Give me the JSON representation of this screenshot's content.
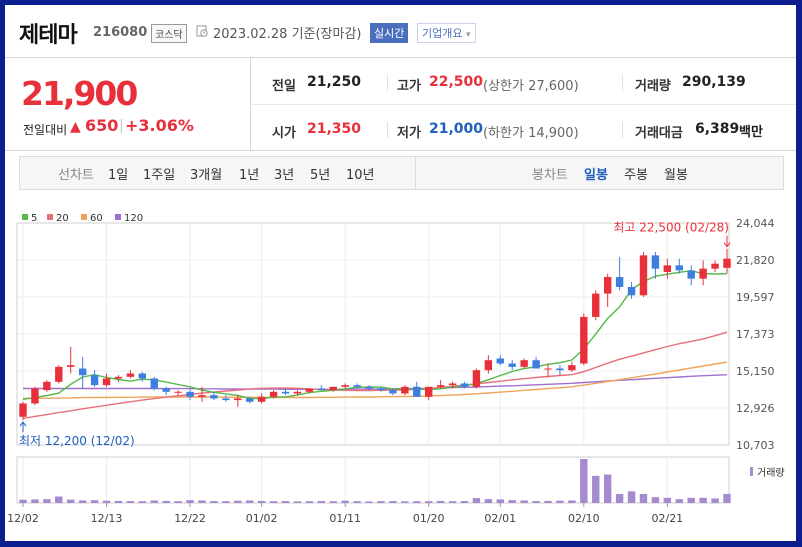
{
  "header": {
    "name": "제테마",
    "code": "216080",
    "market": "코스닥",
    "date_text": "2023.02.28 기준(장마감)",
    "realtime_button": "실시간",
    "overview_button": "기업개요",
    "overview_caret": "▾"
  },
  "price": {
    "current": "21,900",
    "compare_label": "전일대비",
    "change_arrow": "▲",
    "change": "650",
    "change_sep": "|",
    "change_pct": "+3.06%"
  },
  "stats": {
    "prev_label": "전일",
    "prev": "21,250",
    "open_label": "시가",
    "open": "21,350",
    "high_label": "고가",
    "high": "22,500",
    "upper_limit": "(상한가 27,600)",
    "low_label": "저가",
    "low": "21,000",
    "lower_limit": "(하한가 14,900)",
    "volume_label": "거래량",
    "volume": "290,139",
    "amount_label": "거래대금",
    "amount": "6,389",
    "amount_unit": "백만"
  },
  "periods": {
    "line_label": "선차트",
    "line_items": [
      "1일",
      "1주일",
      "3개월",
      "1년",
      "3년",
      "5년",
      "10년"
    ],
    "candle_label": "봉차트",
    "candle_items": [
      "일봉",
      "주봉",
      "월봉"
    ],
    "selected_candle": "일봉"
  },
  "colors": {
    "up": "#e8303a",
    "down": "#3c7fe0",
    "ma5": "#55b848",
    "ma20": "#e8707a",
    "ma60": "#f0a35a",
    "ma120": "#a070d0",
    "volume": "#a58ad0",
    "accent": "#4a6fbf"
  },
  "chart_data": {
    "type": "candlestick",
    "legend": [
      {
        "name": "5",
        "color": "#55b848"
      },
      {
        "name": "20",
        "color": "#e8707a"
      },
      {
        "name": "60",
        "color": "#f0a35a"
      },
      {
        "name": "120",
        "color": "#a070d0"
      }
    ],
    "y_ticks": [
      "24,044",
      "21,820",
      "19,597",
      "17,373",
      "15,150",
      "12,926",
      "10,703"
    ],
    "ylim": [
      10703,
      24044
    ],
    "x_tick_labels": [
      "12/02",
      "12/13",
      "12/22",
      "01/02",
      "01/11",
      "01/20",
      "02/01",
      "02/10",
      "02/21"
    ],
    "x_tick_index": [
      0,
      7,
      14,
      20,
      27,
      34,
      40,
      47,
      54
    ],
    "max_annotation": "최고 22,500 (02/28)",
    "min_annotation": "최저 12,200 (12/02)",
    "volume_label": "거래량",
    "dates": [
      "12/02",
      "12/05",
      "12/06",
      "12/07",
      "12/08",
      "12/09",
      "12/12",
      "12/13",
      "12/14",
      "12/15",
      "12/16",
      "12/19",
      "12/20",
      "12/21",
      "12/22",
      "12/23",
      "12/26",
      "12/27",
      "12/28",
      "12/29",
      "01/02",
      "01/03",
      "01/04",
      "01/05",
      "01/06",
      "01/09",
      "01/10",
      "01/11",
      "01/12",
      "01/13",
      "01/16",
      "01/17",
      "01/18",
      "01/19",
      "01/20",
      "01/25",
      "01/26",
      "01/27",
      "01/30",
      "01/31",
      "02/01",
      "02/02",
      "02/03",
      "02/06",
      "02/07",
      "02/08",
      "02/09",
      "02/10",
      "02/13",
      "02/14",
      "02/15",
      "02/16",
      "02/17",
      "02/20",
      "02/21",
      "02/22",
      "02/23",
      "02/24",
      "02/27",
      "02/28"
    ],
    "ohlc": [
      [
        12400,
        13300,
        12200,
        13200
      ],
      [
        13200,
        14200,
        13100,
        14100
      ],
      [
        14000,
        14600,
        13900,
        14500
      ],
      [
        14500,
        15500,
        14400,
        15400
      ],
      [
        15400,
        16600,
        15000,
        15500
      ],
      [
        15300,
        16000,
        14100,
        14900
      ],
      [
        14900,
        15200,
        14200,
        14300
      ],
      [
        14300,
        15000,
        14200,
        14700
      ],
      [
        14700,
        14900,
        14500,
        14800
      ],
      [
        14800,
        15200,
        14700,
        15000
      ],
      [
        15000,
        15100,
        14500,
        14700
      ],
      [
        14700,
        14800,
        14000,
        14100
      ],
      [
        14100,
        14200,
        13700,
        13900
      ],
      [
        13900,
        14000,
        13700,
        13900
      ],
      [
        13900,
        14100,
        13400,
        13600
      ],
      [
        13600,
        14200,
        13300,
        13700
      ],
      [
        13700,
        13900,
        13400,
        13500
      ],
      [
        13500,
        13700,
        13300,
        13400
      ],
      [
        13400,
        13700,
        13000,
        13500
      ],
      [
        13500,
        13600,
        13200,
        13300
      ],
      [
        13300,
        13800,
        13200,
        13600
      ],
      [
        13600,
        14000,
        13500,
        13900
      ],
      [
        13900,
        14100,
        13700,
        13800
      ],
      [
        13800,
        14000,
        13700,
        13900
      ],
      [
        13900,
        14100,
        13800,
        14100
      ],
      [
        14100,
        14300,
        14000,
        14000
      ],
      [
        14000,
        14200,
        13900,
        14200
      ],
      [
        14200,
        14400,
        14100,
        14300
      ],
      [
        14300,
        14400,
        14100,
        14200
      ],
      [
        14200,
        14300,
        14000,
        14100
      ],
      [
        14100,
        14200,
        13900,
        14000
      ],
      [
        14000,
        14100,
        13700,
        13800
      ],
      [
        13800,
        14300,
        13700,
        14200
      ],
      [
        14200,
        14500,
        13600,
        13600
      ],
      [
        13600,
        14200,
        13400,
        14200
      ],
      [
        14200,
        14600,
        14100,
        14300
      ],
      [
        14300,
        14500,
        14100,
        14400
      ],
      [
        14400,
        14500,
        14100,
        14200
      ],
      [
        14200,
        15300,
        14100,
        15200
      ],
      [
        15200,
        16100,
        15000,
        15800
      ],
      [
        15900,
        16100,
        15500,
        15600
      ],
      [
        15600,
        15800,
        15200,
        15400
      ],
      [
        15400,
        15900,
        15300,
        15800
      ],
      [
        15800,
        16000,
        15300,
        15300
      ],
      [
        15300,
        15600,
        14800,
        15300
      ],
      [
        15300,
        15500,
        14900,
        15200
      ],
      [
        15200,
        15700,
        15100,
        15500
      ],
      [
        15600,
        18600,
        15500,
        18400
      ],
      [
        18400,
        20000,
        18200,
        19800
      ],
      [
        19800,
        21000,
        19000,
        20800
      ],
      [
        20800,
        22000,
        20000,
        20200
      ],
      [
        20200,
        20500,
        19500,
        19700
      ],
      [
        19700,
        22300,
        19600,
        22100
      ],
      [
        22100,
        22300,
        20700,
        21300
      ],
      [
        21100,
        21900,
        20700,
        21500
      ],
      [
        21500,
        21900,
        21000,
        21200
      ],
      [
        21200,
        21500,
        20300,
        20700
      ],
      [
        20700,
        21800,
        20300,
        21300
      ],
      [
        21300,
        21800,
        21100,
        21600
      ],
      [
        21350,
        22500,
        21000,
        21900
      ]
    ],
    "volume": [
      25,
      28,
      30,
      50,
      26,
      20,
      22,
      18,
      16,
      15,
      14,
      20,
      16,
      14,
      22,
      20,
      15,
      14,
      18,
      20,
      16,
      14,
      15,
      13,
      14,
      15,
      14,
      18,
      14,
      12,
      14,
      15,
      13,
      14,
      14,
      16,
      14,
      15,
      38,
      30,
      28,
      22,
      20,
      15,
      16,
      18,
      20,
      340,
      210,
      220,
      70,
      90,
      70,
      45,
      40,
      30,
      40,
      40,
      35,
      70
    ],
    "ma5": [
      13450,
      13550,
      13680,
      13820,
      14350,
      14790,
      14930,
      14760,
      14640,
      14540,
      14660,
      14620,
      14480,
      14340,
      14200,
      14000,
      13870,
      13780,
      13680,
      13510,
      13480,
      13590,
      13600,
      13700,
      13850,
      13930,
      13990,
      14080,
      14170,
      14190,
      14180,
      14070,
      14060,
      14060,
      14030,
      14080,
      14180,
      14260,
      14400,
      14620,
      14880,
      15120,
      15300,
      15400,
      15550,
      15650,
      15810,
      16480,
      17370,
      18310,
      19000,
      20030,
      20530,
      20840,
      20970,
      21080,
      21170,
      21010,
      20980,
      21000
    ],
    "ma20": [
      12300,
      12420,
      12530,
      12650,
      12760,
      12880,
      12980,
      13090,
      13200,
      13300,
      13400,
      13490,
      13580,
      13660,
      13740,
      13820,
      13880,
      13950,
      14010,
      14060,
      14110,
      14120,
      14130,
      14110,
      14070,
      14030,
      14000,
      13990,
      13980,
      13980,
      13990,
      14000,
      14010,
      14050,
      14100,
      14160,
      14230,
      14300,
      14380,
      14460,
      14540,
      14620,
      14690,
      14760,
      14820,
      14880,
      14930,
      15110,
      15360,
      15620,
      15860,
      16040,
      16240,
      16430,
      16620,
      16790,
      16930,
      17080,
      17270,
      17480
    ],
    "ma60": [
      13500,
      13510,
      13510,
      13520,
      13530,
      13550,
      13560,
      13560,
      13570,
      13570,
      13580,
      13590,
      13590,
      13590,
      13590,
      13590,
      13580,
      13580,
      13570,
      13570,
      13570,
      13560,
      13560,
      13560,
      13560,
      13570,
      13570,
      13580,
      13590,
      13590,
      13600,
      13610,
      13620,
      13630,
      13640,
      13670,
      13700,
      13740,
      13780,
      13830,
      13880,
      13930,
      13990,
      14040,
      14090,
      14140,
      14200,
      14300,
      14410,
      14520,
      14630,
      14740,
      14860,
      14970,
      15090,
      15210,
      15330,
      15450,
      15570,
      15680
    ],
    "ma120": [
      14100,
      14100,
      14100,
      14100,
      14100,
      14100,
      14100,
      14100,
      14100,
      14100,
      14100,
      14100,
      14090,
      14090,
      14090,
      14080,
      14080,
      14070,
      14070,
      14060,
      14060,
      14060,
      14050,
      14050,
      14050,
      14050,
      14050,
      14050,
      14060,
      14060,
      14070,
      14080,
      14090,
      14100,
      14110,
      14130,
      14150,
      14170,
      14190,
      14210,
      14240,
      14260,
      14290,
      14320,
      14350,
      14380,
      14410,
      14460,
      14500,
      14550,
      14590,
      14630,
      14670,
      14710,
      14750,
      14790,
      14830,
      14870,
      14900,
      14920
    ]
  }
}
